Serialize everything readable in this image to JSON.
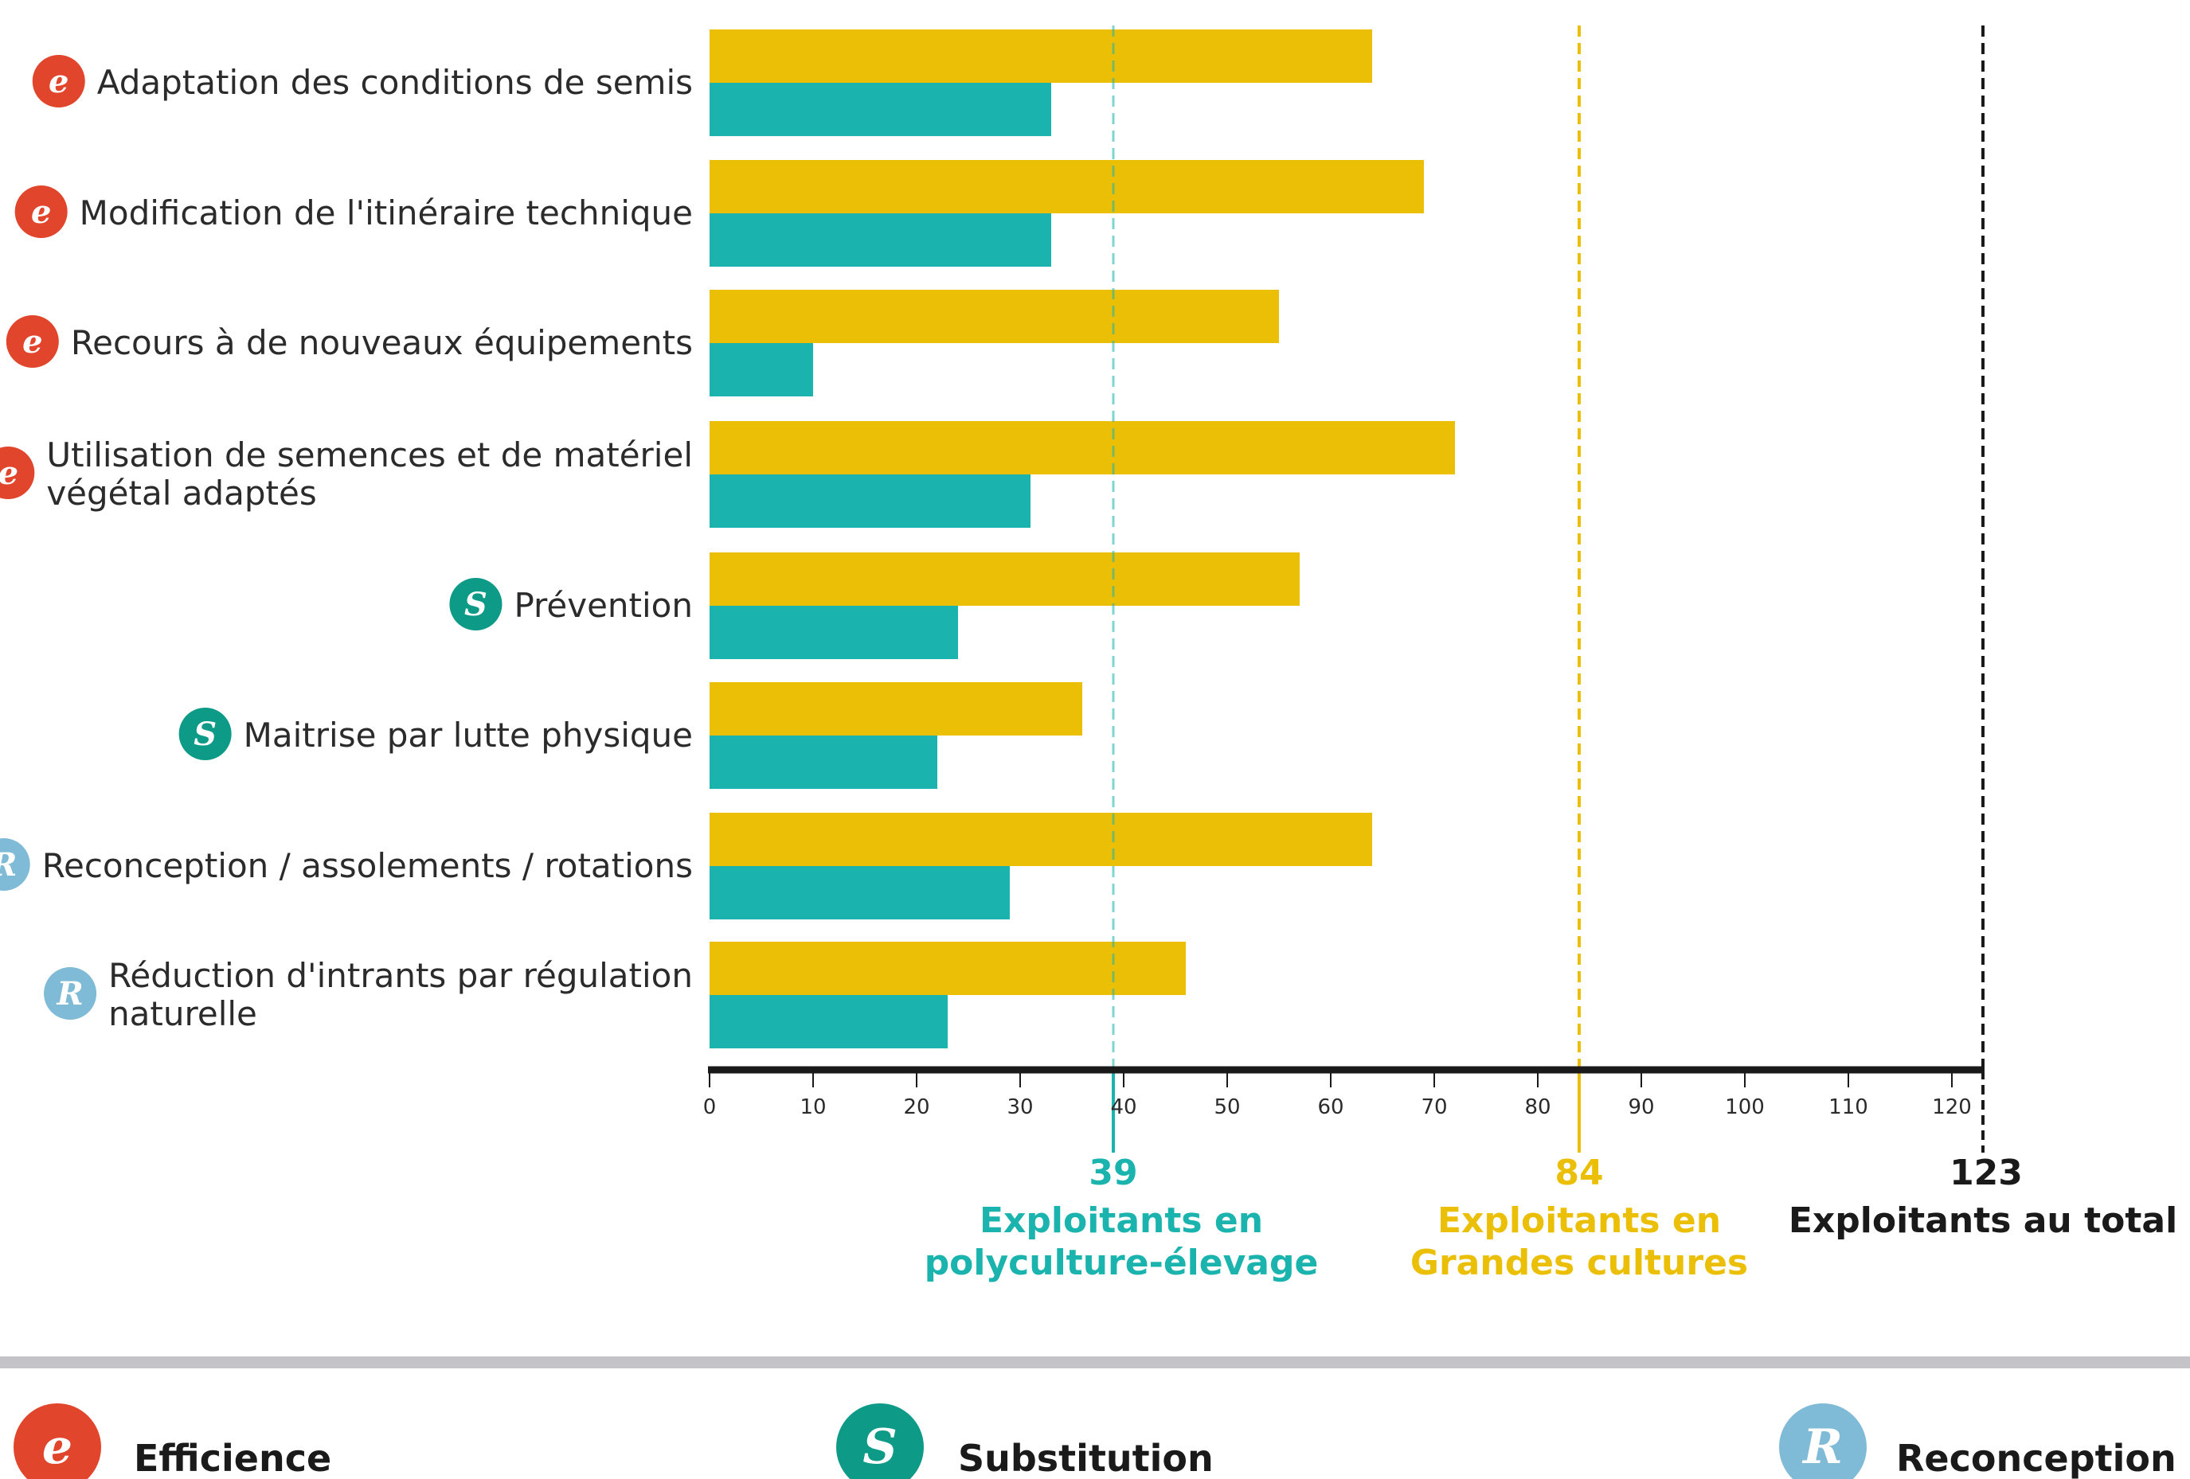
{
  "chart_data": {
    "type": "bar",
    "orientation": "horizontal",
    "xlim": [
      0,
      123
    ],
    "x_ticks": [
      0,
      10,
      20,
      30,
      40,
      50,
      60,
      70,
      80,
      90,
      100,
      110,
      120
    ],
    "grid": false,
    "categories": [
      {
        "label": [
          "Adaptation des conditions de semis"
        ],
        "strategy": "efficience"
      },
      {
        "label": [
          "Modification de l'itinéraire technique"
        ],
        "strategy": "efficience"
      },
      {
        "label": [
          "Recours à de nouveaux équipements"
        ],
        "strategy": "efficience"
      },
      {
        "label": [
          "Utilisation de semences et de matériel",
          "végétal adaptés"
        ],
        "strategy": "efficience"
      },
      {
        "label": [
          "Prévention"
        ],
        "strategy": "substitution"
      },
      {
        "label": [
          "Maitrise par lutte physique"
        ],
        "strategy": "substitution"
      },
      {
        "label": [
          "Reconception / assolements / rotations"
        ],
        "strategy": "reconception"
      },
      {
        "label": [
          "Réduction d'intrants par régulation",
          "naturelle"
        ],
        "strategy": "reconception"
      }
    ],
    "series": [
      {
        "key": "grandes_cultures",
        "color": "#ebbf06",
        "values": [
          64,
          69,
          55,
          72,
          57,
          36,
          64,
          46
        ]
      },
      {
        "key": "polyculture_elevage",
        "color": "#1bb3ad",
        "values": [
          33,
          33,
          10,
          31,
          24,
          22,
          29,
          23
        ]
      }
    ],
    "reference_lines": [
      {
        "value": 39,
        "value_label": "39",
        "text": [
          "Exploitants en",
          "polyculture-élevage"
        ],
        "color": "#1bb3ad",
        "style": "dashed-light"
      },
      {
        "value": 84,
        "value_label": "84",
        "text": [
          "Exploitants en",
          "Grandes cultures"
        ],
        "color": "#ebbf06",
        "style": "dashed"
      },
      {
        "value": 123,
        "value_label": "123",
        "text": [
          "Exploitants au total"
        ],
        "color": "#1a1a1a",
        "style": "dashed"
      }
    ]
  },
  "legend": {
    "items": [
      {
        "strategy": "efficience",
        "letter": "e",
        "label": "Efficience"
      },
      {
        "strategy": "substitution",
        "letter": "S",
        "label": "Substitution"
      },
      {
        "strategy": "reconception",
        "letter": "R",
        "label": "Reconception"
      }
    ]
  },
  "badges": {
    "efficience": {
      "letter": "e",
      "color": "#e1452b"
    },
    "substitution": {
      "letter": "S",
      "color": "#0d9a87"
    },
    "reconception": {
      "letter": "R",
      "color": "#7fbad6",
      "text_color": "#1a1a1a"
    }
  },
  "divider_color": "#c4c4c8"
}
